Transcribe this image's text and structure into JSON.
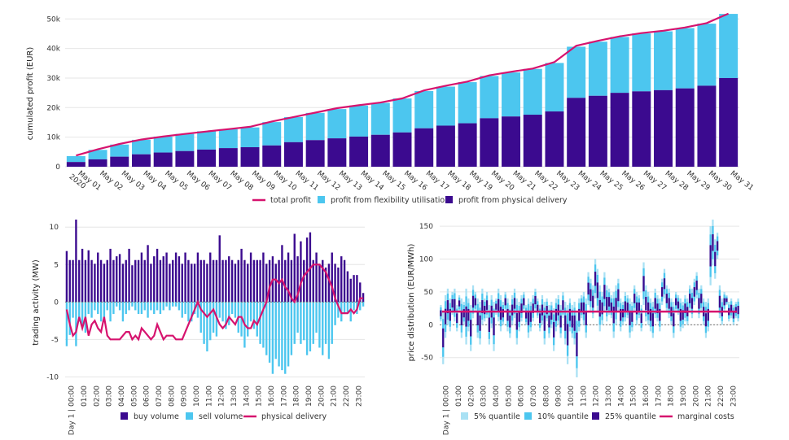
{
  "colors": {
    "dark": "#3b0a8f",
    "light": "#4cc6ef",
    "lighter": "#a9e1f4",
    "line": "#d6136e"
  },
  "chart_data": [
    {
      "type": "bar",
      "ylabel": "cumulated profit (EUR)",
      "ylim": [
        0,
        52000
      ],
      "yticks": [
        "0",
        "10k",
        "20k",
        "30k",
        "40k",
        "50k"
      ],
      "ytick_values": [
        0,
        10000,
        20000,
        30000,
        40000,
        50000
      ],
      "categories": [
        "May 01 2020",
        "May 02",
        "May 03",
        "May 04",
        "May 05",
        "May 06",
        "May 07",
        "May 08",
        "May 09",
        "May 10",
        "May 11",
        "May 12",
        "May 13",
        "May 14",
        "May 15",
        "May 16",
        "May 17",
        "May 18",
        "May 19",
        "May 20",
        "May 21",
        "May 22",
        "May 23",
        "May 24",
        "May 25",
        "May 26",
        "May 27",
        "May 28",
        "May 29",
        "May 30",
        "May 31"
      ],
      "first_label": [
        "May 01",
        "2020"
      ],
      "series": [
        {
          "name": "total profit",
          "kind": "line",
          "values": [
            3800,
            5900,
            7700,
            9200,
            10200,
            11100,
            11900,
            12700,
            13500,
            15300,
            16800,
            18300,
            19800,
            20800,
            21700,
            23100,
            25800,
            27400,
            28800,
            30900,
            32100,
            33200,
            35400,
            40900,
            42600,
            44100,
            45200,
            46000,
            47100,
            48600,
            51800
          ]
        },
        {
          "name": "profit from flexibility utilisation",
          "kind": "bar",
          "values": [
            2000,
            3200,
            4100,
            4900,
            5400,
            5800,
            6200,
            6400,
            6700,
            7900,
            8500,
            9200,
            9900,
            10500,
            10800,
            11500,
            12600,
            13200,
            13900,
            14300,
            14900,
            15500,
            16400,
            17300,
            18300,
            18900,
            19600,
            19900,
            20400,
            21000,
            21700
          ]
        },
        {
          "name": "profit from physical delivery",
          "kind": "bar",
          "values": [
            1600,
            2500,
            3400,
            4200,
            4800,
            5300,
            5800,
            6300,
            6600,
            7200,
            8300,
            9000,
            9600,
            10200,
            10800,
            11600,
            13000,
            13900,
            14700,
            16400,
            17000,
            17600,
            18700,
            23300,
            24000,
            25000,
            25500,
            25900,
            26500,
            27400,
            30000
          ]
        }
      ]
    },
    {
      "type": "bar",
      "ylabel": "trading activity (MW)",
      "ylim": [
        -10.5,
        11
      ],
      "yticks": [
        "10",
        "5",
        "0",
        "-5",
        "-10"
      ],
      "ytick_values": [
        10,
        5,
        0,
        -5,
        -10
      ],
      "xticks": [
        "Day 1 | 00:00",
        "01:00",
        "02:00",
        "03:00",
        "04:00",
        "05:00",
        "06:00",
        "07:00",
        "08:00",
        "09:00",
        "10:00",
        "11:00",
        "12:00",
        "13:00",
        "14:00",
        "15:00",
        "16:00",
        "17:00",
        "18:00",
        "19:00",
        "20:00",
        "21:00",
        "22:00",
        "23:00"
      ],
      "series": [
        {
          "name": "buy volume",
          "kind": "bar",
          "values": [
            6.8,
            5.6,
            5.6,
            11,
            5.6,
            7.1,
            5.6,
            6.9,
            5.6,
            5.1,
            6.6,
            5.6,
            5.1,
            5.6,
            7.1,
            5.6,
            6.1,
            6.4,
            5.1,
            5.6,
            7.1,
            4.9,
            5.6,
            5.6,
            6.6,
            5.6,
            7.6,
            5.1,
            6.1,
            7.1,
            5.6,
            6.1,
            6.6,
            5.1,
            5.6,
            6.6,
            6.1,
            5.1,
            6.6,
            5.6,
            5.1,
            5.1,
            6.6,
            5.6,
            5.6,
            5.1,
            6.6,
            5.6,
            5.6,
            8.9,
            5.6,
            5.6,
            6.1,
            5.6,
            5.1,
            5.6,
            7.1,
            5.6,
            5.1,
            6.6,
            5.6,
            5.6,
            5.6,
            6.6,
            5.1,
            5.6,
            6.1,
            5.1,
            5.6,
            7.6,
            5.6,
            6.6,
            5.6,
            9.1,
            6.1,
            8.1,
            5.6,
            8.6,
            9.3,
            5.6,
            6.6,
            5.1,
            5.6,
            4.6,
            5.1,
            6.6,
            5.1,
            4.6,
            6.1,
            5.6,
            4.1,
            3.1,
            3.6,
            3.6,
            2.6,
            1.2
          ]
        },
        {
          "name": "sell volume",
          "kind": "bar",
          "values": [
            -5.9,
            -4.4,
            -2.1,
            -5.9,
            -2.6,
            -3.1,
            -4.1,
            -1.6,
            -2.1,
            -1.1,
            -1.6,
            -2.6,
            -2.1,
            -1.1,
            -2.6,
            -1.6,
            -0.6,
            -1.1,
            -2.6,
            -1.6,
            -1.1,
            -0.6,
            -1.1,
            -1.6,
            -1.6,
            -1.1,
            -2.1,
            -1.1,
            -1.6,
            -1.1,
            -1.6,
            -1.1,
            -0.6,
            -1.1,
            -0.6,
            -0.6,
            -1.1,
            -2.1,
            -1.6,
            -2.6,
            -2.6,
            -1.6,
            -2.1,
            -4.1,
            -5.6,
            -6.6,
            -5.1,
            -4.1,
            -4.6,
            -2.1,
            -2.6,
            -3.6,
            -3.1,
            -1.6,
            -2.1,
            -4.1,
            -4.6,
            -6.1,
            -4.6,
            -2.6,
            -3.6,
            -4.6,
            -5.6,
            -6.1,
            -7.1,
            -8.1,
            -9.6,
            -7.6,
            -8.6,
            -9.1,
            -9.6,
            -8.6,
            -7.1,
            -5.6,
            -4.1,
            -5.6,
            -5.1,
            -7.1,
            -6.6,
            -5.6,
            -4.1,
            -6.1,
            -7.1,
            -5.6,
            -7.6,
            -5.6,
            -3.1,
            -2.1,
            -2.6,
            -1.6,
            -1.6,
            -2.6,
            -1.1,
            -1.6,
            -1.1,
            -0.6
          ]
        },
        {
          "name": "physical delivery",
          "kind": "line",
          "values": [
            -1,
            -3,
            -4.5,
            -4,
            -2,
            -3.5,
            -2,
            -4.5,
            -3,
            -2.5,
            -3.5,
            -4,
            -2,
            -4.5,
            -5,
            -5,
            -5,
            -5,
            -4.5,
            -4,
            -4,
            -5,
            -4.5,
            -5,
            -3.5,
            -4,
            -4.5,
            -5,
            -4.5,
            -3,
            -4,
            -5,
            -4.5,
            -4.5,
            -4.5,
            -5,
            -5,
            -5,
            -4,
            -3,
            -2,
            -1,
            0,
            -1,
            -1.5,
            -2,
            -1.5,
            -1,
            -2,
            -3,
            -3.5,
            -3,
            -2,
            -2.5,
            -3,
            -2,
            -2,
            -3,
            -3.5,
            -3.5,
            -2.5,
            -3,
            -2,
            -1,
            0,
            2,
            3,
            3,
            2.5,
            3,
            2,
            1.5,
            0.5,
            0,
            1,
            2.5,
            3.5,
            4,
            4.5,
            5,
            5,
            5,
            4.5,
            4,
            3,
            2,
            0.5,
            -0.5,
            -1.5,
            -1.5,
            -1.5,
            -1,
            -1.5,
            -1,
            0.5,
            0.5
          ]
        }
      ]
    },
    {
      "type": "bar",
      "ylabel": "price distribution (EUR/MWh)",
      "ylim": [
        -85,
        160
      ],
      "yticks": [
        "150",
        "100",
        "50",
        "0",
        "-50"
      ],
      "ytick_values": [
        150,
        100,
        50,
        0,
        -50
      ],
      "xticks": [
        "Day 1 | 00:00",
        "01:00",
        "02:00",
        "03:00",
        "04:00",
        "05:00",
        "06:00",
        "07:00",
        "08:00",
        "09:00",
        "10:00",
        "11:00",
        "12:00",
        "13:00",
        "14:00",
        "15:00",
        "16:00",
        "17:00",
        "18:00",
        "19:00",
        "20:00",
        "21:00",
        "22:00",
        "23:00"
      ],
      "marginal_costs": 20,
      "series": [
        {
          "name": "5% quantile",
          "kind": "band",
          "lo": [
            5,
            -60,
            -20,
            0,
            -10,
            15,
            5,
            -10,
            20,
            -20,
            0,
            -30,
            -10,
            -40,
            10,
            20,
            -20,
            -30,
            0,
            5,
            10,
            -30,
            -5,
            -40,
            15,
            5,
            -10,
            0,
            20,
            -10,
            -20,
            0,
            10,
            -30,
            -10,
            5,
            20,
            0,
            -20,
            -10,
            5,
            20,
            10,
            -10,
            0,
            -30,
            5,
            -20,
            -5,
            -40,
            -10,
            0,
            -20,
            10,
            -30,
            -60,
            -10,
            -20,
            -30,
            -80,
            -10,
            10,
            0,
            -20,
            30,
            20,
            10,
            40,
            20,
            -10,
            0,
            20,
            5,
            15,
            10,
            -20,
            0,
            20,
            -10,
            0,
            5,
            10,
            -20,
            -10,
            20,
            0,
            10,
            -10,
            30,
            5,
            0,
            -10,
            -20,
            10,
            5,
            -10,
            30,
            40,
            20,
            10,
            0,
            -20,
            20,
            15,
            -10,
            -5,
            5,
            0,
            20,
            10,
            30,
            40,
            10,
            20,
            0,
            -20,
            -10,
            60,
            90,
            70,
            100,
            10,
            0,
            20,
            30,
            5,
            10,
            0,
            10,
            5
          ],
          "hi": [
            30,
            20,
            45,
            55,
            40,
            50,
            55,
            30,
            45,
            40,
            35,
            55,
            40,
            30,
            60,
            50,
            40,
            35,
            55,
            40,
            50,
            30,
            45,
            35,
            40,
            55,
            45,
            35,
            50,
            40,
            30,
            45,
            55,
            40,
            35,
            45,
            50,
            30,
            40,
            35,
            45,
            55,
            40,
            30,
            45,
            35,
            40,
            30,
            35,
            25,
            40,
            45,
            30,
            50,
            35,
            30,
            40,
            30,
            35,
            20,
            40,
            45,
            50,
            40,
            80,
            70,
            60,
            100,
            85,
            60,
            50,
            80,
            60,
            55,
            45,
            50,
            60,
            70,
            40,
            35,
            50,
            45,
            40,
            35,
            60,
            50,
            45,
            30,
            95,
            60,
            50,
            40,
            35,
            55,
            45,
            40,
            70,
            85,
            60,
            55,
            40,
            35,
            50,
            45,
            40,
            35,
            45,
            40,
            60,
            55,
            70,
            80,
            55,
            60,
            40,
            35,
            40,
            150,
            160,
            130,
            140,
            60,
            40,
            50,
            45,
            35,
            40,
            30,
            35,
            40
          ]
        },
        {
          "name": "10% quantile",
          "kind": "band"
        },
        {
          "name": "25% quantile",
          "kind": "band"
        },
        {
          "name": "marginal costs",
          "kind": "line"
        }
      ]
    }
  ]
}
